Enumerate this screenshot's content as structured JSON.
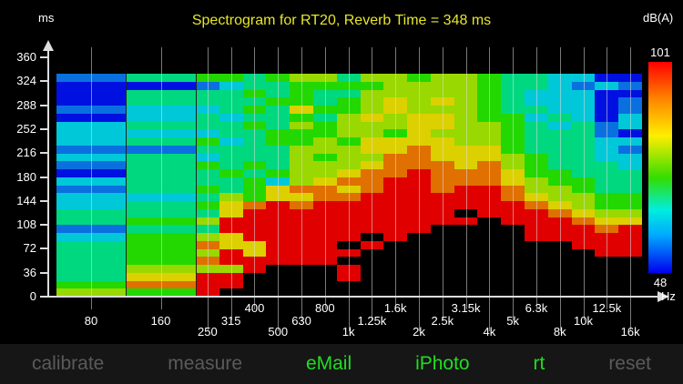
{
  "header": {
    "title": "Spectrogram for RT20, Reverb Time = 348 ms",
    "y_unit": "ms",
    "colorbar_unit": "dB(A)",
    "colorbar_max": "101",
    "colorbar_min": "48",
    "x_unit": "Hz"
  },
  "toolbar": {
    "items": [
      {
        "label": "calibrate",
        "color": "#5a5a5a"
      },
      {
        "label": "measure",
        "color": "#5a5a5a"
      },
      {
        "label": "eMail",
        "color": "#22dd22"
      },
      {
        "label": "iPhoto",
        "color": "#22dd22"
      },
      {
        "label": "rt",
        "color": "#22dd22"
      },
      {
        "label": "reset",
        "color": "#5a5a5a"
      }
    ]
  },
  "chart_data": {
    "type": "heatmap",
    "title": "Spectrogram for RT20, Reverb Time = 348 ms",
    "xlabel": "Hz",
    "ylabel": "ms",
    "y_ticks": [
      0,
      36,
      72,
      108,
      144,
      180,
      216,
      252,
      288,
      324,
      360
    ],
    "ylim": [
      0,
      360
    ],
    "x_tick_labels": [
      "80",
      "160",
      "250",
      "315",
      "400",
      "500",
      "630",
      "800",
      "1k",
      "1.25k",
      "1.6k",
      "2k",
      "2.5k",
      "3.15k",
      "4k",
      "5k",
      "6.3k",
      "8k",
      "10k",
      "12.5k",
      "16k"
    ],
    "colorbar": {
      "label": "dB(A)",
      "min": 48,
      "max": 101
    },
    "reverb_time_ms": 348,
    "levels_note": "Rows top (~333 ms) to bottom (0 ms); level 0=black(below range), 1=blue ... 9=red",
    "columns": [
      {
        "band": "80",
        "levels": [
          2,
          1,
          1,
          1,
          2,
          1,
          3,
          3,
          3,
          2,
          3,
          2,
          1,
          3,
          2,
          3,
          3,
          4,
          4,
          2,
          3,
          4,
          4,
          4,
          4,
          4,
          5,
          6
        ]
      },
      {
        "band": "160",
        "levels": [
          4,
          1,
          4,
          4,
          3,
          3,
          4,
          3,
          4,
          2,
          4,
          4,
          4,
          4,
          4,
          3,
          4,
          4,
          5,
          4,
          5,
          5,
          5,
          5,
          6,
          7,
          8,
          5
        ]
      },
      {
        "band": "250",
        "levels": [
          5,
          2,
          4,
          4,
          3,
          4,
          4,
          3,
          5,
          4,
          3,
          5,
          4,
          4,
          5,
          4,
          5,
          4,
          6,
          4,
          6,
          8,
          6,
          8,
          6,
          9,
          9,
          9
        ]
      },
      {
        "band": "315",
        "levels": [
          5,
          3,
          4,
          4,
          4,
          3,
          4,
          4,
          3,
          4,
          4,
          4,
          5,
          4,
          4,
          6,
          7,
          7,
          9,
          9,
          7,
          7,
          9,
          9,
          6,
          9,
          9,
          0
        ]
      },
      {
        "band": "400",
        "levels": [
          4,
          4,
          5,
          4,
          5,
          4,
          5,
          4,
          4,
          4,
          4,
          5,
          4,
          5,
          5,
          5,
          8,
          9,
          9,
          9,
          9,
          7,
          7,
          9,
          9,
          0,
          0,
          0
        ]
      },
      {
        "band": "500",
        "levels": [
          5,
          4,
          4,
          5,
          4,
          4,
          4,
          5,
          5,
          4,
          4,
          4,
          5,
          3,
          7,
          7,
          9,
          9,
          9,
          9,
          9,
          9,
          9,
          9,
          0,
          0,
          0,
          0
        ]
      },
      {
        "band": "630",
        "levels": [
          6,
          5,
          5,
          5,
          7,
          5,
          6,
          5,
          5,
          6,
          6,
          6,
          6,
          6,
          8,
          7,
          8,
          9,
          9,
          9,
          9,
          9,
          9,
          9,
          0,
          0,
          0,
          0
        ]
      },
      {
        "band": "800",
        "levels": [
          6,
          5,
          4,
          4,
          5,
          4,
          5,
          5,
          6,
          6,
          5,
          6,
          6,
          7,
          8,
          8,
          9,
          9,
          9,
          9,
          9,
          9,
          9,
          9,
          0,
          0,
          0,
          0
        ]
      },
      {
        "band": "1k",
        "levels": [
          4,
          5,
          4,
          5,
          5,
          6,
          6,
          6,
          5,
          6,
          6,
          6,
          7,
          8,
          7,
          8,
          9,
          9,
          9,
          9,
          9,
          0,
          9,
          0,
          9,
          9,
          0,
          0
        ]
      },
      {
        "band": "1.25k",
        "levels": [
          6,
          5,
          6,
          6,
          6,
          7,
          6,
          6,
          7,
          7,
          6,
          7,
          8,
          8,
          8,
          9,
          9,
          9,
          9,
          9,
          0,
          9,
          0,
          0,
          0,
          0,
          0,
          0
        ]
      },
      {
        "band": "1.6k",
        "levels": [
          6,
          6,
          6,
          7,
          7,
          6,
          6,
          5,
          7,
          7,
          8,
          8,
          8,
          9,
          9,
          9,
          9,
          9,
          9,
          9,
          9,
          0,
          0,
          0,
          0,
          0,
          0,
          0
        ]
      },
      {
        "band": "2k",
        "levels": [
          5,
          6,
          6,
          6,
          6,
          7,
          7,
          7,
          7,
          8,
          8,
          8,
          9,
          9,
          9,
          9,
          9,
          9,
          9,
          9,
          0,
          0,
          0,
          0,
          0,
          0,
          0,
          0
        ]
      },
      {
        "band": "2.5k",
        "levels": [
          6,
          6,
          6,
          7,
          6,
          7,
          7,
          6,
          7,
          7,
          7,
          8,
          8,
          8,
          8,
          9,
          9,
          9,
          9,
          0,
          0,
          0,
          0,
          0,
          0,
          0,
          0,
          0
        ]
      },
      {
        "band": "3.15k",
        "levels": [
          6,
          6,
          6,
          6,
          6,
          6,
          6,
          6,
          6,
          7,
          7,
          7,
          8,
          8,
          9,
          9,
          9,
          0,
          9,
          0,
          0,
          0,
          0,
          0,
          0,
          0,
          0,
          0
        ]
      },
      {
        "band": "4k",
        "levels": [
          5,
          5,
          5,
          5,
          5,
          5,
          6,
          6,
          6,
          7,
          7,
          8,
          8,
          8,
          9,
          9,
          9,
          9,
          0,
          0,
          0,
          0,
          0,
          0,
          0,
          0,
          0,
          0
        ]
      },
      {
        "band": "5k",
        "levels": [
          4,
          4,
          4,
          4,
          4,
          5,
          5,
          5,
          5,
          5,
          6,
          6,
          7,
          7,
          8,
          8,
          9,
          9,
          9,
          0,
          0,
          0,
          0,
          0,
          0,
          0,
          0,
          0
        ]
      },
      {
        "band": "6.3k",
        "levels": [
          4,
          4,
          3,
          3,
          4,
          3,
          4,
          4,
          4,
          4,
          5,
          5,
          5,
          6,
          6,
          7,
          8,
          9,
          9,
          9,
          9,
          0,
          0,
          0,
          0,
          0,
          0,
          0
        ]
      },
      {
        "band": "8k",
        "levels": [
          3,
          3,
          3,
          3,
          3,
          4,
          3,
          4,
          4,
          4,
          4,
          4,
          5,
          5,
          6,
          6,
          7,
          8,
          9,
          9,
          9,
          0,
          0,
          0,
          0,
          0,
          0,
          0
        ]
      },
      {
        "band": "10k",
        "levels": [
          3,
          2,
          3,
          3,
          3,
          3,
          4,
          4,
          4,
          4,
          4,
          4,
          4,
          5,
          5,
          6,
          6,
          7,
          8,
          9,
          9,
          9,
          0,
          0,
          0,
          0,
          0,
          0
        ]
      },
      {
        "band": "12.5k",
        "levels": [
          1,
          3,
          1,
          1,
          1,
          1,
          2,
          2,
          3,
          3,
          3,
          4,
          4,
          4,
          4,
          5,
          5,
          6,
          7,
          8,
          9,
          9,
          9,
          0,
          0,
          0,
          0,
          0
        ]
      },
      {
        "band": "16k",
        "levels": [
          1,
          2,
          1,
          2,
          2,
          3,
          3,
          1,
          3,
          2,
          3,
          3,
          4,
          4,
          4,
          5,
          5,
          6,
          7,
          9,
          9,
          9,
          9,
          0,
          0,
          0,
          0,
          0
        ]
      }
    ]
  }
}
